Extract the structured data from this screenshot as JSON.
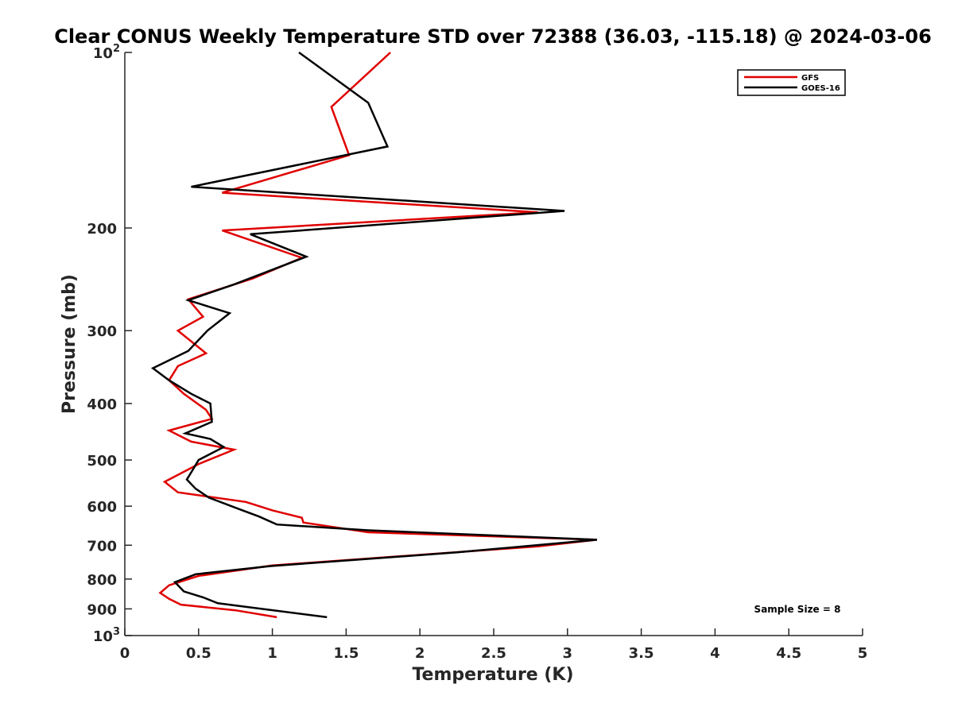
{
  "chart_data": {
    "type": "line",
    "title": "Clear CONUS Weekly Temperature STD over 72388 (36.03, -115.18) @ 2024-03-06",
    "xlabel": "Temperature (K)",
    "ylabel": "Pressure (mb)",
    "xlim": [
      0,
      5
    ],
    "ylim": [
      100,
      1000
    ],
    "yscale": "log",
    "y_reversed": true,
    "grid": false,
    "legend_position": "top-right",
    "x_ticks": [
      "0",
      "0.5",
      "1",
      "1.5",
      "2",
      "2.5",
      "3",
      "3.5",
      "4",
      "4.5",
      "5"
    ],
    "y_ticks": [
      {
        "value": 100,
        "base": "10",
        "exp": "2"
      },
      {
        "value": 200,
        "label": "200"
      },
      {
        "value": 300,
        "label": "300"
      },
      {
        "value": 400,
        "label": "400"
      },
      {
        "value": 500,
        "label": "500"
      },
      {
        "value": 600,
        "label": "600"
      },
      {
        "value": 700,
        "label": "700"
      },
      {
        "value": 800,
        "label": "800"
      },
      {
        "value": 900,
        "label": "900"
      },
      {
        "value": 1000,
        "base": "10",
        "exp": "3"
      }
    ],
    "series": [
      {
        "name": "GFS",
        "color": "#e00000",
        "points": [
          [
            1.8,
            100
          ],
          [
            1.4,
            124
          ],
          [
            1.52,
            150
          ],
          [
            0.66,
            174
          ],
          [
            2.8,
            188
          ],
          [
            0.66,
            202
          ],
          [
            1.2,
            225
          ],
          [
            0.87,
            244
          ],
          [
            0.43,
            265
          ],
          [
            0.53,
            284
          ],
          [
            0.36,
            300
          ],
          [
            0.55,
            328
          ],
          [
            0.36,
            345
          ],
          [
            0.3,
            365
          ],
          [
            0.4,
            385
          ],
          [
            0.55,
            410
          ],
          [
            0.59,
            425
          ],
          [
            0.3,
            445
          ],
          [
            0.45,
            465
          ],
          [
            0.74,
            480
          ],
          [
            0.5,
            508
          ],
          [
            0.27,
            545
          ],
          [
            0.36,
            568
          ],
          [
            0.82,
            590
          ],
          [
            1.0,
            610
          ],
          [
            1.2,
            628
          ],
          [
            1.21,
            640
          ],
          [
            1.65,
            665
          ],
          [
            3.2,
            685
          ],
          [
            2.8,
            703
          ],
          [
            1.0,
            758
          ],
          [
            0.5,
            790
          ],
          [
            0.3,
            820
          ],
          [
            0.24,
            845
          ],
          [
            0.3,
            865
          ],
          [
            0.38,
            885
          ],
          [
            0.75,
            905
          ],
          [
            1.03,
            930
          ]
        ]
      },
      {
        "name": "GOES-16",
        "color": "#000000",
        "points": [
          [
            1.18,
            100
          ],
          [
            1.65,
            122
          ],
          [
            1.78,
            145
          ],
          [
            0.45,
            170
          ],
          [
            2.98,
            187
          ],
          [
            0.85,
            205
          ],
          [
            1.23,
            224
          ],
          [
            0.74,
            250
          ],
          [
            0.43,
            266
          ],
          [
            0.71,
            280
          ],
          [
            0.56,
            300
          ],
          [
            0.43,
            325
          ],
          [
            0.19,
            348
          ],
          [
            0.3,
            365
          ],
          [
            0.45,
            385
          ],
          [
            0.58,
            400
          ],
          [
            0.59,
            430
          ],
          [
            0.41,
            450
          ],
          [
            0.58,
            460
          ],
          [
            0.67,
            475
          ],
          [
            0.5,
            500
          ],
          [
            0.46,
            520
          ],
          [
            0.42,
            540
          ],
          [
            0.48,
            560
          ],
          [
            0.57,
            580
          ],
          [
            0.76,
            605
          ],
          [
            0.91,
            625
          ],
          [
            1.03,
            645
          ],
          [
            1.65,
            660
          ],
          [
            3.2,
            685
          ],
          [
            2.25,
            720
          ],
          [
            0.99,
            760
          ],
          [
            0.48,
            785
          ],
          [
            0.34,
            810
          ],
          [
            0.4,
            840
          ],
          [
            0.53,
            860
          ],
          [
            0.63,
            880
          ],
          [
            1.37,
            930
          ]
        ]
      }
    ],
    "annotations": [
      "Sample Size = 8"
    ]
  }
}
